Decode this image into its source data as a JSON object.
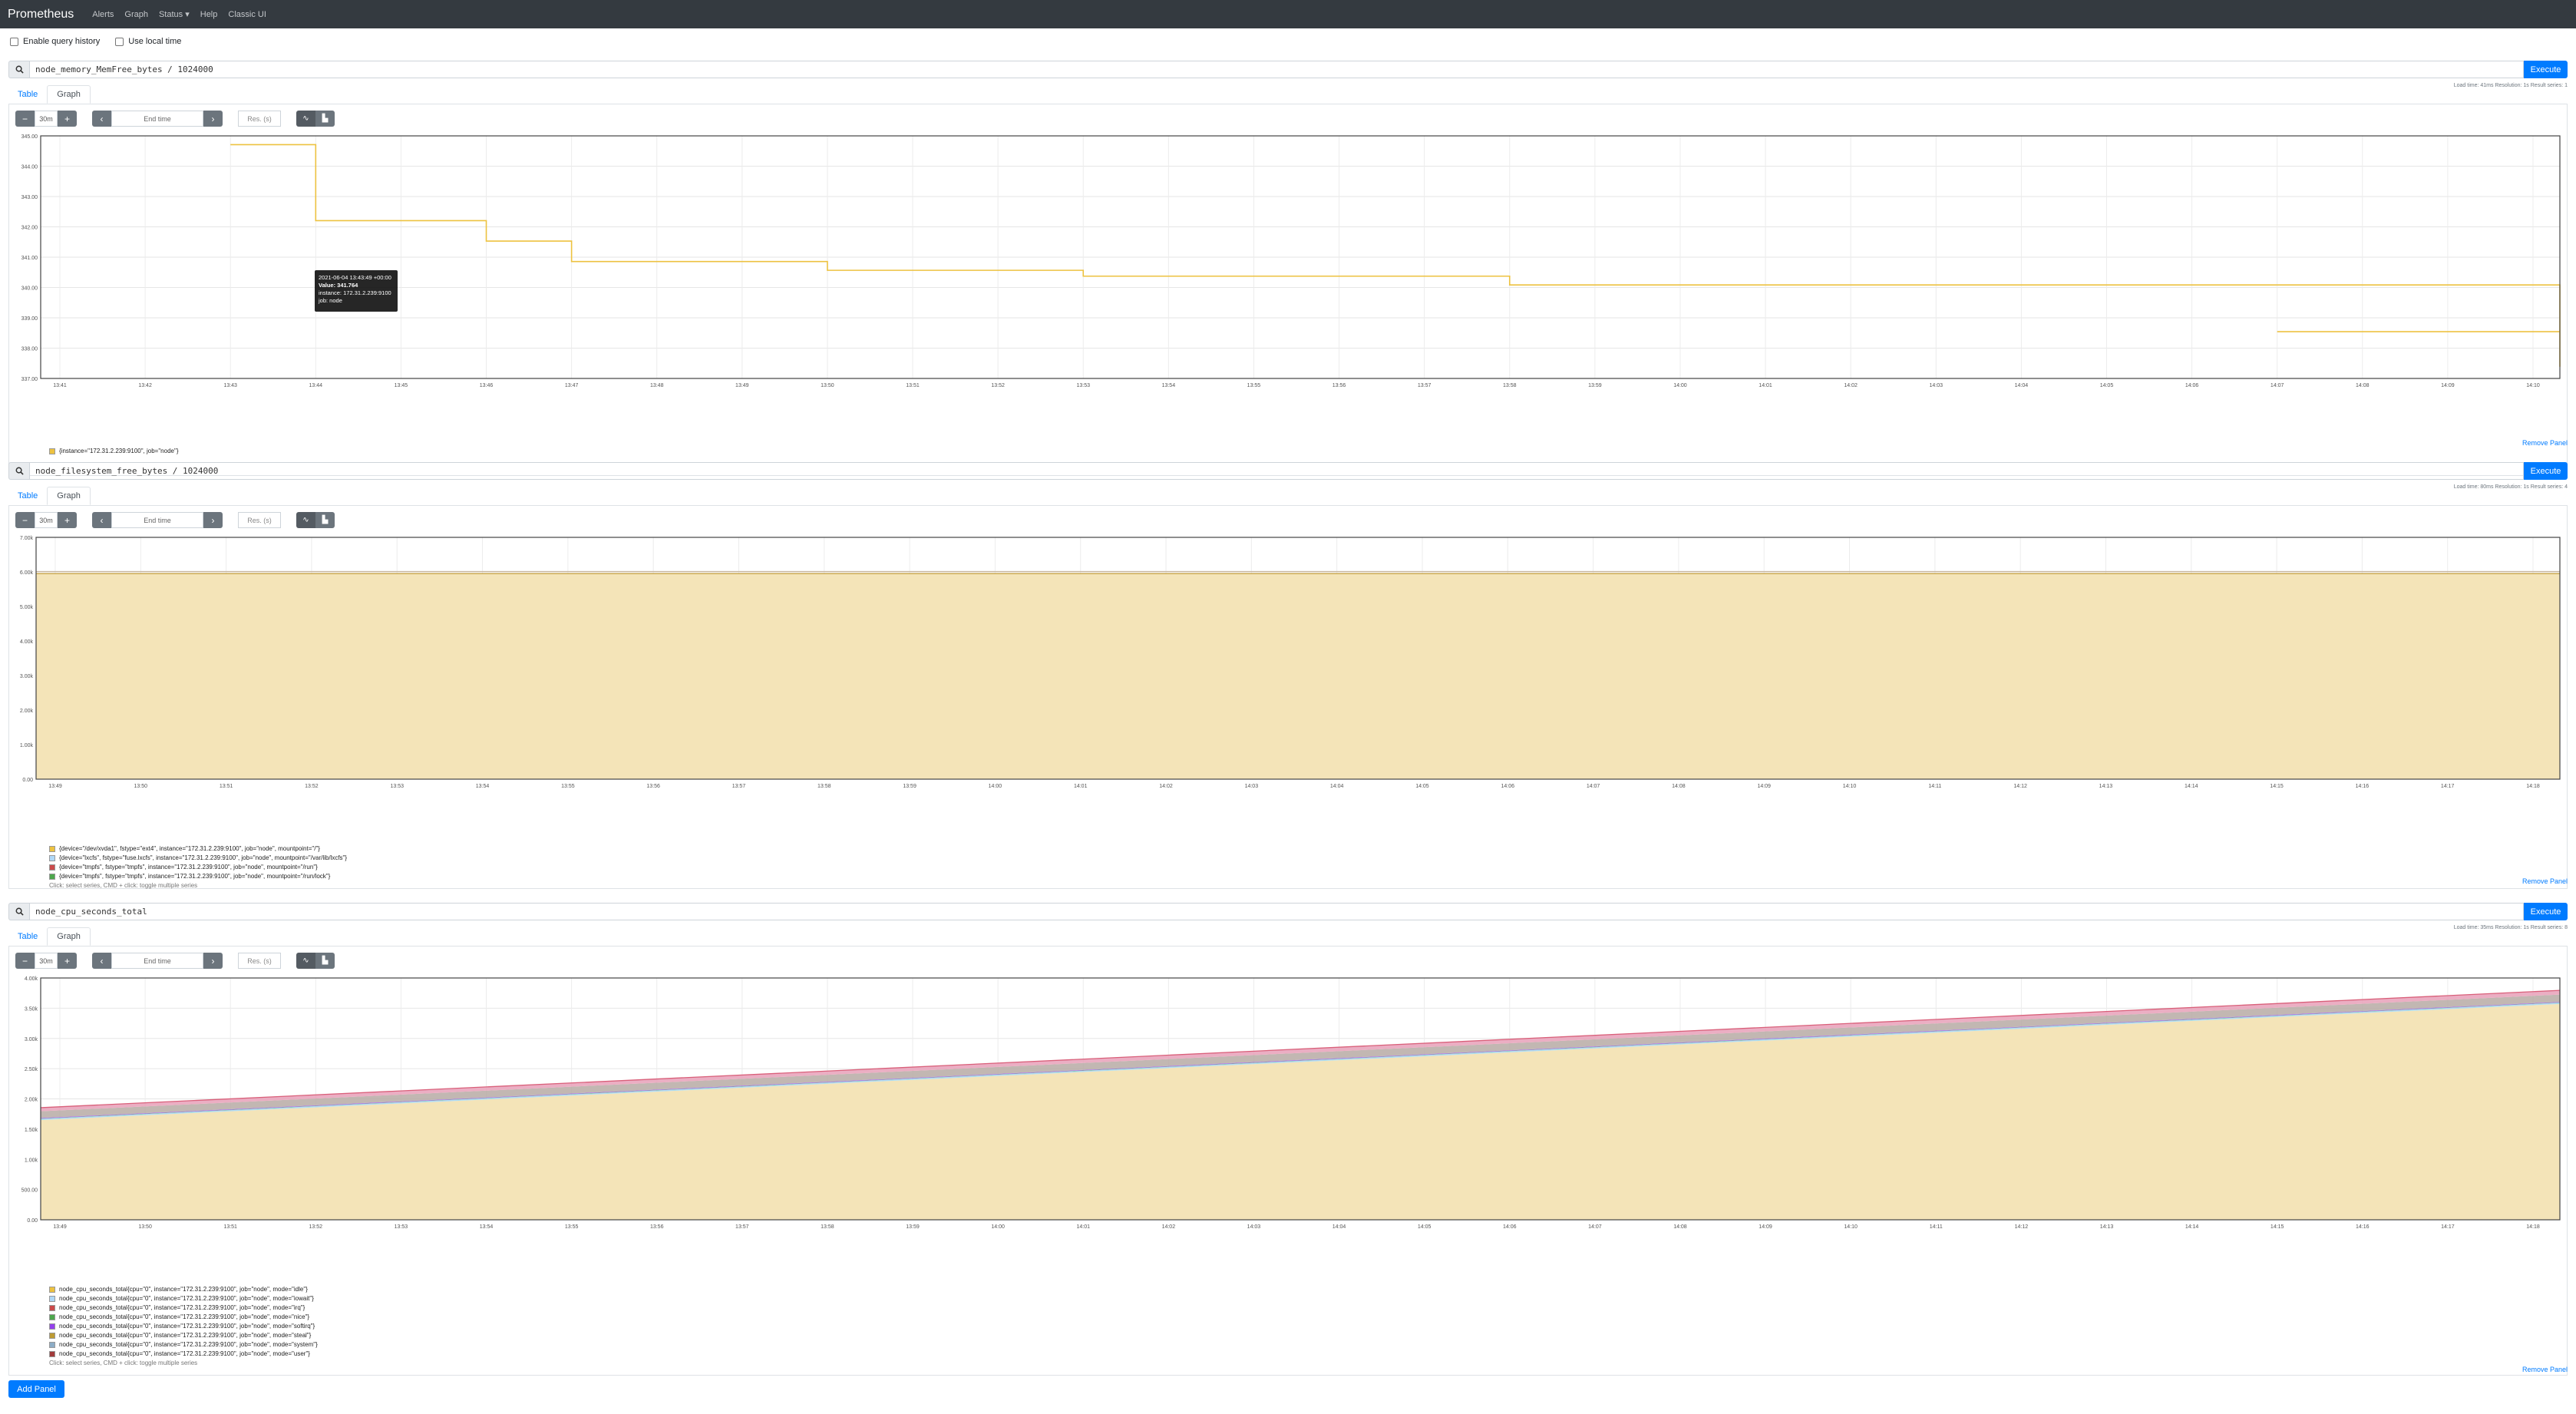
{
  "nav": {
    "brand": "Prometheus",
    "links": [
      "Alerts",
      "Graph",
      "Status",
      "Help",
      "Classic UI"
    ],
    "status_caret": "▾"
  },
  "options": {
    "query_history": "Enable query history",
    "local_time": "Use local time"
  },
  "common": {
    "execute": "Execute",
    "tab_table": "Table",
    "tab_graph": "Graph",
    "range": "30m",
    "end_time": "End time",
    "res": "Res. (s)",
    "remove": "Remove Panel",
    "hint": "Click: select series, CMD + click: toggle multiple series"
  },
  "add_panel": "Add Panel",
  "colors": {
    "series1": "#edc240",
    "series2": "#afd8f8",
    "series3": "#cb4b4b",
    "series4": "#4da74d",
    "series5": "#9440ed",
    "fill": "#f4e4b8"
  },
  "panels": [
    {
      "query": "node_memory_MemFree_bytes / 1024000",
      "stats": "Load time: 41ms   Resolution: 1s   Result series: 1",
      "legend": [
        "{instance=\"172.31.2.239:9100\", job=\"node\"}"
      ],
      "tooltip": {
        "time": "2021-06-04 13:43:49 +00:00",
        "value": "Value: 341.764",
        "instance": "instance: 172.31.2.239:9100",
        "job": "job: node"
      },
      "chart_data": {
        "type": "line",
        "x": [
          "13:41",
          "13:42",
          "13:43",
          "13:44",
          "13:45",
          "13:46",
          "13:47",
          "13:48",
          "13:49",
          "13:50",
          "13:51",
          "13:52",
          "13:53",
          "13:54",
          "13:55",
          "13:56",
          "13:57",
          "13:58",
          "13:59",
          "14:00",
          "14:01",
          "14:02",
          "14:03",
          "14:04",
          "14:05",
          "14:06",
          "14:07",
          "14:08",
          "14:09",
          "14:10"
        ],
        "y_ticks": [
          "345.00",
          "344.00",
          "343.00",
          "342.00",
          "341.00",
          "340.00",
          "339.00",
          "338.00",
          "337.00"
        ],
        "ylim": [
          336.8,
          345.1
        ],
        "series": [
          {
            "points": [
              [
                13.43,
                344.8
              ],
              [
                13.44,
                342.2
              ],
              [
                13.46,
                341.5
              ],
              [
                13.47,
                340.8
              ],
              [
                13.5,
                340.5
              ],
              [
                13.53,
                340.3
              ],
              [
                13.58,
                340.0
              ],
              [
                13.73,
                339.8
              ],
              [
                13.74,
                339.7
              ],
              [
                13.77,
                339.6
              ],
              [
                13.78,
                339.5
              ],
              [
                13.84,
                339.3
              ],
              [
                13.87,
                339.1
              ],
              [
                13.89,
                339.0
              ],
              [
                13.94,
                338.9
              ],
              [
                13.96,
                338.7
              ],
              [
                13.97,
                338.6
              ],
              [
                13.99,
                338.4
              ],
              [
                14.07,
                338.4
              ],
              [
                14.11,
                337.8
              ],
              [
                14.15,
                337.8
              ],
              [
                14.21,
                337.6
              ],
              [
                14.26,
                337.2
              ],
              [
                14.35,
                337.2
              ],
              [
                14.38,
                337.7
              ],
              [
                15.2,
                337.7
              ]
            ]
          }
        ]
      }
    },
    {
      "query": "node_filesystem_free_bytes / 1024000",
      "stats": "Load time: 80ms   Resolution: 1s   Result series: 4",
      "legend": [
        "{device=\"/dev/xvda1\", fstype=\"ext4\", instance=\"172.31.2.239:9100\", job=\"node\", mountpoint=\"/\"}",
        "{device=\"lxcfs\", fstype=\"fuse.lxcfs\", instance=\"172.31.2.239:9100\", job=\"node\", mountpoint=\"/var/lib/lxcfs\"}",
        "{device=\"tmpfs\", fstype=\"tmpfs\", instance=\"172.31.2.239:9100\", job=\"node\", mountpoint=\"/run\"}",
        "{device=\"tmpfs\", fstype=\"tmpfs\", instance=\"172.31.2.239:9100\", job=\"node\", mountpoint=\"/run/lock\"}"
      ],
      "chart_data": {
        "type": "area",
        "x": [
          "13:49",
          "13:50",
          "13:51",
          "13:52",
          "13:53",
          "13:54",
          "13:55",
          "13:56",
          "13:57",
          "13:58",
          "13:59",
          "14:00",
          "14:01",
          "14:02",
          "14:03",
          "14:04",
          "14:05",
          "14:06",
          "14:07",
          "14:08",
          "14:09",
          "14:10",
          "14:11",
          "14:12",
          "14:13",
          "14:14",
          "14:15",
          "14:16",
          "14:17",
          "14:18"
        ],
        "y_ticks": [
          "7.00k",
          "6.00k",
          "5.00k",
          "4.00k",
          "3.00k",
          "2.00k",
          "1.00k",
          "0.00"
        ],
        "ylim": [
          0,
          7000
        ],
        "stacked": true,
        "series": [
          {
            "value": 5950
          },
          {
            "value": 0
          },
          {
            "value": 50
          },
          {
            "value": 1
          }
        ]
      }
    },
    {
      "query": "node_cpu_seconds_total",
      "stats": "Load time: 35ms   Resolution: 1s   Result series: 8",
      "legend": [
        "node_cpu_seconds_total{cpu=\"0\", instance=\"172.31.2.239:9100\", job=\"node\", mode=\"idle\"}",
        "node_cpu_seconds_total{cpu=\"0\", instance=\"172.31.2.239:9100\", job=\"node\", mode=\"iowait\"}",
        "node_cpu_seconds_total{cpu=\"0\", instance=\"172.31.2.239:9100\", job=\"node\", mode=\"irq\"}",
        "node_cpu_seconds_total{cpu=\"0\", instance=\"172.31.2.239:9100\", job=\"node\", mode=\"nice\"}",
        "node_cpu_seconds_total{cpu=\"0\", instance=\"172.31.2.239:9100\", job=\"node\", mode=\"softirq\"}",
        "node_cpu_seconds_total{cpu=\"0\", instance=\"172.31.2.239:9100\", job=\"node\", mode=\"steal\"}",
        "node_cpu_seconds_total{cpu=\"0\", instance=\"172.31.2.239:9100\", job=\"node\", mode=\"system\"}",
        "node_cpu_seconds_total{cpu=\"0\", instance=\"172.31.2.239:9100\", job=\"node\", mode=\"user\"}"
      ],
      "chart_data": {
        "type": "area",
        "x": [
          "13:49",
          "13:50",
          "13:51",
          "13:52",
          "13:53",
          "13:54",
          "13:55",
          "13:56",
          "13:57",
          "13:58",
          "13:59",
          "14:00",
          "14:01",
          "14:02",
          "14:03",
          "14:04",
          "14:05",
          "14:06",
          "14:07",
          "14:08",
          "14:09",
          "14:10",
          "14:11",
          "14:12",
          "14:13",
          "14:14",
          "14:15",
          "14:16",
          "14:17",
          "14:18"
        ],
        "y_ticks": [
          "4.00k",
          "3.50k",
          "3.00k",
          "2.50k",
          "2.00k",
          "1.50k",
          "1.00k",
          "500.00",
          "0.00"
        ],
        "ylim": [
          0,
          4000
        ],
        "stacked": true,
        "series": [
          {
            "start": 1650,
            "end": 3570
          },
          {
            "start": 20,
            "end": 20
          },
          {
            "start": 0,
            "end": 0
          },
          {
            "start": 5,
            "end": 5
          },
          {
            "start": 10,
            "end": 10
          },
          {
            "start": 0,
            "end": 0
          },
          {
            "start": 110,
            "end": 120
          },
          {
            "start": 60,
            "end": 70
          }
        ]
      }
    }
  ]
}
